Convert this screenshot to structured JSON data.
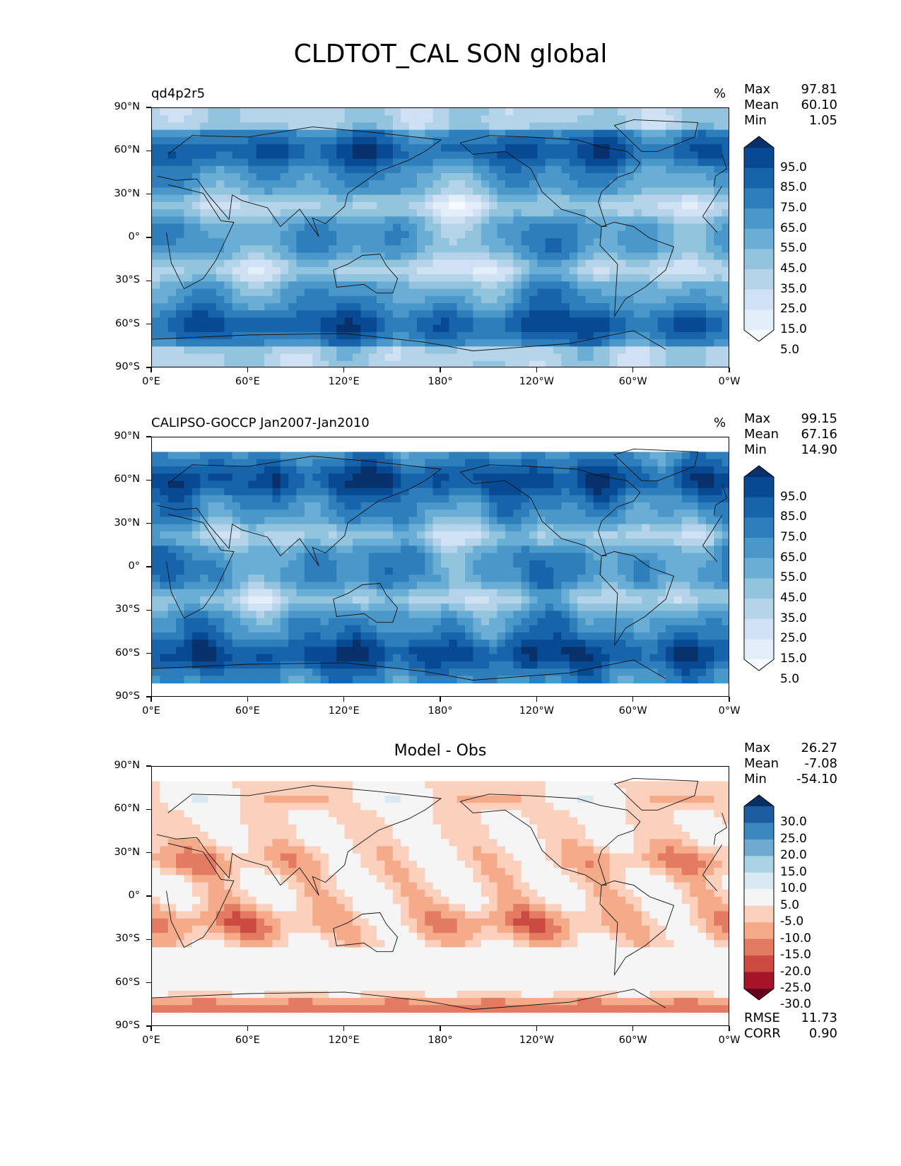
{
  "figure_title": "CLDTOT_CAL SON global",
  "colors": {
    "blues": [
      "#f7fbff",
      "#e3eef9",
      "#cfe1f2",
      "#b5d4e9",
      "#93c4de",
      "#6aaed6",
      "#4a98c9",
      "#2e7ebc",
      "#1764ab",
      "#084a91",
      "#08306b"
    ],
    "diff": [
      "#67001f",
      "#a51429",
      "#cb4a41",
      "#e27b62",
      "#f5ab8a",
      "#fbd1be",
      "#f5f5f5",
      "#d8e9f1",
      "#acd2e5",
      "#6fabd0",
      "#3b88be",
      "#1c5c9f",
      "#053061"
    ]
  },
  "chart_data": [
    {
      "type": "heatmap",
      "title": "qd4p2r5",
      "units": "%",
      "stats": {
        "Max": "97.81",
        "Mean": "60.10",
        "Min": "1.05"
      },
      "colorbar_ticks": [
        "95.0",
        "85.0",
        "75.0",
        "65.0",
        "55.0",
        "45.0",
        "35.0",
        "25.0",
        "15.0",
        "5.0"
      ],
      "levels": [
        0,
        10,
        20,
        30,
        40,
        50,
        60,
        70,
        80,
        90,
        100
      ],
      "xlim": [
        0,
        360
      ],
      "ylim": [
        -90,
        90
      ],
      "xticks": [
        "0°E",
        "60°E",
        "120°E",
        "180°",
        "120°W",
        "60°W",
        "0°W"
      ],
      "yticks": [
        "90°N",
        "60°N",
        "30°N",
        "0°",
        "30°S",
        "60°S",
        "90°S"
      ],
      "data_lat_range": [
        -90,
        90
      ]
    },
    {
      "type": "heatmap",
      "title": "CALIPSO-GOCCP Jan2007-Jan2010",
      "units": "%",
      "stats": {
        "Max": "99.15",
        "Mean": "67.16",
        "Min": "14.90"
      },
      "colorbar_ticks": [
        "95.0",
        "85.0",
        "75.0",
        "65.0",
        "55.0",
        "45.0",
        "35.0",
        "25.0",
        "15.0",
        "5.0"
      ],
      "levels": [
        0,
        10,
        20,
        30,
        40,
        50,
        60,
        70,
        80,
        90,
        100
      ],
      "xlim": [
        0,
        360
      ],
      "ylim": [
        -90,
        90
      ],
      "xticks": [
        "0°E",
        "60°E",
        "120°E",
        "180°",
        "120°W",
        "60°W",
        "0°W"
      ],
      "yticks": [
        "90°N",
        "60°N",
        "30°N",
        "0°",
        "30°S",
        "60°S",
        "90°S"
      ],
      "data_lat_range": [
        -82,
        82
      ]
    },
    {
      "type": "heatmap",
      "title": "Model - Obs",
      "units": "",
      "stats": {
        "Max": "26.27",
        "Mean": "-7.08",
        "Min": "-54.10"
      },
      "metrics": {
        "RMSE": "11.73",
        "CORR": "0.90"
      },
      "colorbar_ticks": [
        "30.0",
        "25.0",
        "20.0",
        "15.0",
        "10.0",
        "5.0",
        "-5.0",
        "-10.0",
        "-15.0",
        "-20.0",
        "-25.0",
        "-30.0"
      ],
      "levels": [
        -30,
        -25,
        -20,
        -15,
        -10,
        -5,
        5,
        10,
        15,
        20,
        25,
        30
      ],
      "xlim": [
        0,
        360
      ],
      "ylim": [
        -90,
        90
      ],
      "xticks": [
        "0°E",
        "60°E",
        "120°E",
        "180°",
        "120°W",
        "60°W",
        "0°W"
      ],
      "yticks": [
        "90°N",
        "60°N",
        "30°N",
        "0°",
        "30°S",
        "60°S",
        "90°S"
      ],
      "data_lat_range": [
        -82,
        82
      ]
    }
  ]
}
